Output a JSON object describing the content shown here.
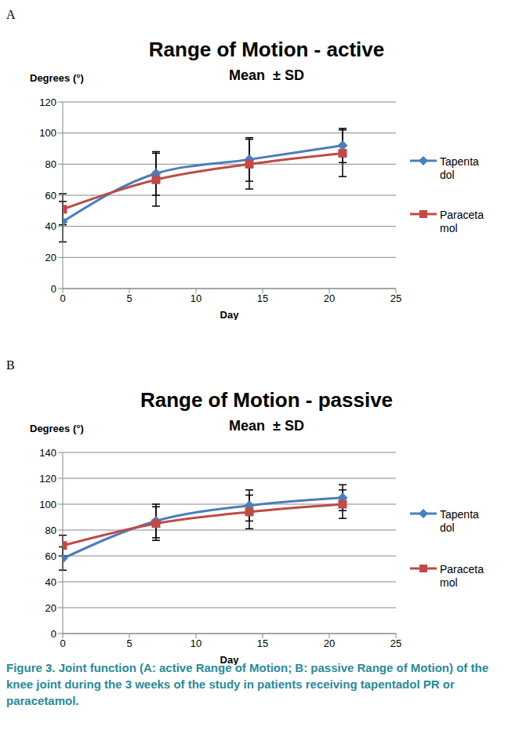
{
  "chart_data": [
    {
      "type": "line",
      "panel_label": "A",
      "title": "Range of Motion - active",
      "subtitle": "Mean  ± SD",
      "y_label": "Degrees (°)",
      "x_label": "Day",
      "x": [
        0,
        7,
        14,
        21
      ],
      "series": [
        {
          "name": "Tapentadol",
          "color": "#4a7ebb",
          "marker": "diamond",
          "values": [
            43,
            74,
            83,
            92
          ],
          "sd": [
            13,
            14,
            14,
            11
          ]
        },
        {
          "name": "Paracetamol",
          "color": "#be4b48",
          "marker": "square",
          "values": [
            51,
            70,
            80,
            87
          ],
          "sd": [
            10,
            17,
            16,
            15
          ]
        }
      ],
      "xlim": [
        0,
        25
      ],
      "xticks": [
        0,
        5,
        10,
        15,
        20,
        25
      ],
      "ylim": [
        0,
        120
      ],
      "yticks": [
        0,
        20,
        40,
        60,
        80,
        100,
        120
      ],
      "grid": true,
      "legend": "right"
    },
    {
      "type": "line",
      "panel_label": "B",
      "title": "Range of Motion - passive",
      "subtitle": "Mean  ± SD",
      "y_label": "Degrees (°)",
      "x_label": "Day",
      "x": [
        0,
        7,
        14,
        21
      ],
      "series": [
        {
          "name": "Tapentadol",
          "color": "#4a7ebb",
          "marker": "diamond",
          "values": [
            58,
            87,
            99,
            105
          ],
          "sd": [
            9,
            13,
            12,
            10
          ]
        },
        {
          "name": "Paracetamol",
          "color": "#be4b48",
          "marker": "square",
          "values": [
            68,
            85,
            94,
            100
          ],
          "sd": [
            8,
            13,
            13,
            11
          ]
        }
      ],
      "xlim": [
        0,
        25
      ],
      "xticks": [
        0,
        5,
        10,
        15,
        20,
        25
      ],
      "ylim": [
        0,
        140
      ],
      "yticks": [
        0,
        20,
        40,
        60,
        80,
        100,
        120,
        140
      ],
      "grid": true,
      "legend": "right"
    }
  ],
  "caption": "Figure 3. Joint function (A: active Range of Motion; B: passive Range of Motion) of the knee joint during the 3 weeks of the study in patients receiving tapentadol PR or paracetamol."
}
